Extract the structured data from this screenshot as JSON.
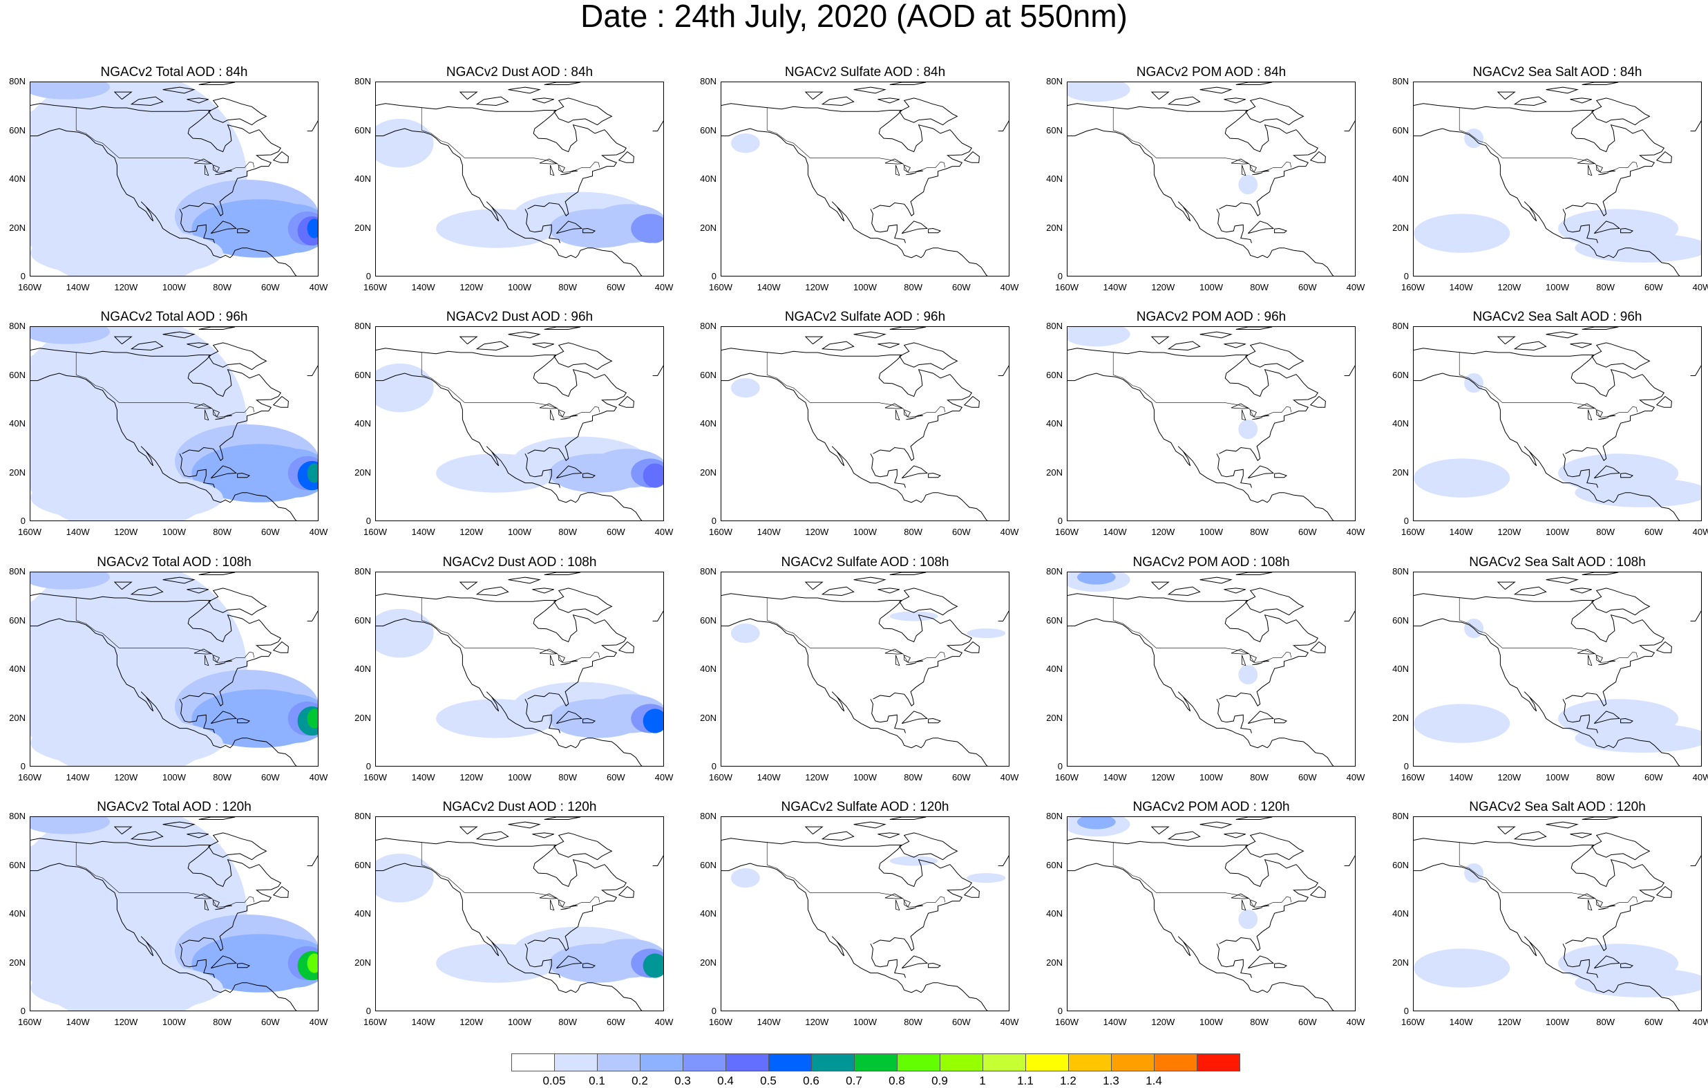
{
  "title": "Date : 24th July, 2020 (AOD at 550nm)",
  "lat_labels": [
    "80N",
    "60N",
    "40N",
    "20N",
    "0"
  ],
  "lon_labels": [
    "160W",
    "140W",
    "120W",
    "100W",
    "80W",
    "60W",
    "40W"
  ],
  "panel_rows": [
    [
      "NGACv2 Total AOD : 84h",
      "NGACv2 Dust AOD : 84h",
      "NGACv2 Sulfate AOD : 84h",
      "NGACv2 POM AOD : 84h",
      "NGACv2 Sea Salt AOD : 84h"
    ],
    [
      "NGACv2 Total AOD : 96h",
      "NGACv2 Dust AOD : 96h",
      "NGACv2 Sulfate AOD : 96h",
      "NGACv2 POM AOD : 96h",
      "NGACv2 Sea Salt AOD : 96h"
    ],
    [
      "NGACv2 Total AOD : 108h",
      "NGACv2 Dust AOD : 108h",
      "NGACv2 Sulfate AOD : 108h",
      "NGACv2 POM AOD : 108h",
      "NGACv2 Sea Salt AOD : 108h"
    ],
    [
      "NGACv2 Total AOD : 120h",
      "NGACv2 Dust AOD : 120h",
      "NGACv2 Sulfate AOD : 120h",
      "NGACv2 POM AOD : 120h",
      "NGACv2 Sea Salt  AOD : 120h"
    ]
  ],
  "colorbar": {
    "labels": [
      "0.05",
      "0.1",
      "0.2",
      "0.3",
      "0.4",
      "0.5",
      "0.6",
      "0.7",
      "0.8",
      "0.9",
      "1",
      "1.1",
      "1.2",
      "1.3",
      "1.4"
    ],
    "colors": [
      "#ffffff",
      "#d6e2ff",
      "#b5c9ff",
      "#8eb2ff",
      "#7f96ff",
      "#6370ff",
      "#0063ff",
      "#009696",
      "#00c633",
      "#63ff00",
      "#96ff00",
      "#c6ff33",
      "#ffff00",
      "#ffc600",
      "#ffa000",
      "#ff7c00",
      "#ff1900"
    ]
  }
}
